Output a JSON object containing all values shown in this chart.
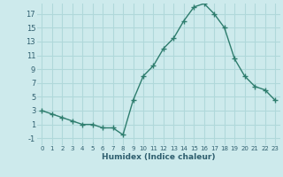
{
  "x": [
    0,
    1,
    2,
    3,
    4,
    5,
    6,
    7,
    8,
    9,
    10,
    11,
    12,
    13,
    14,
    15,
    16,
    17,
    18,
    19,
    20,
    21,
    22,
    23
  ],
  "y": [
    3,
    2.5,
    2,
    1.5,
    1,
    1,
    0.5,
    0.5,
    -0.5,
    4.5,
    8,
    9.5,
    12,
    13.5,
    16,
    18,
    18.5,
    17,
    15,
    10.5,
    8,
    6.5,
    6,
    4.5
  ],
  "line_color": "#2e7d6e",
  "marker": "+",
  "marker_size": 4,
  "bg_color": "#cdeaec",
  "grid_color": "#b0d8da",
  "xlabel": "Humidex (Indice chaleur)",
  "xlim": [
    -0.5,
    23.5
  ],
  "ylim": [
    -2,
    18.5
  ],
  "yticks": [
    -1,
    1,
    3,
    5,
    7,
    9,
    11,
    13,
    15,
    17
  ],
  "xticks": [
    0,
    1,
    2,
    3,
    4,
    5,
    6,
    7,
    8,
    9,
    10,
    11,
    12,
    13,
    14,
    15,
    16,
    17,
    18,
    19,
    20,
    21,
    22,
    23
  ],
  "xtick_labels": [
    "0",
    "1",
    "2",
    "3",
    "4",
    "5",
    "6",
    "7",
    "8",
    "9",
    "10",
    "11",
    "12",
    "13",
    "14",
    "15",
    "16",
    "17",
    "18",
    "19",
    "20",
    "21",
    "22",
    "23"
  ],
  "line_width": 1.0
}
